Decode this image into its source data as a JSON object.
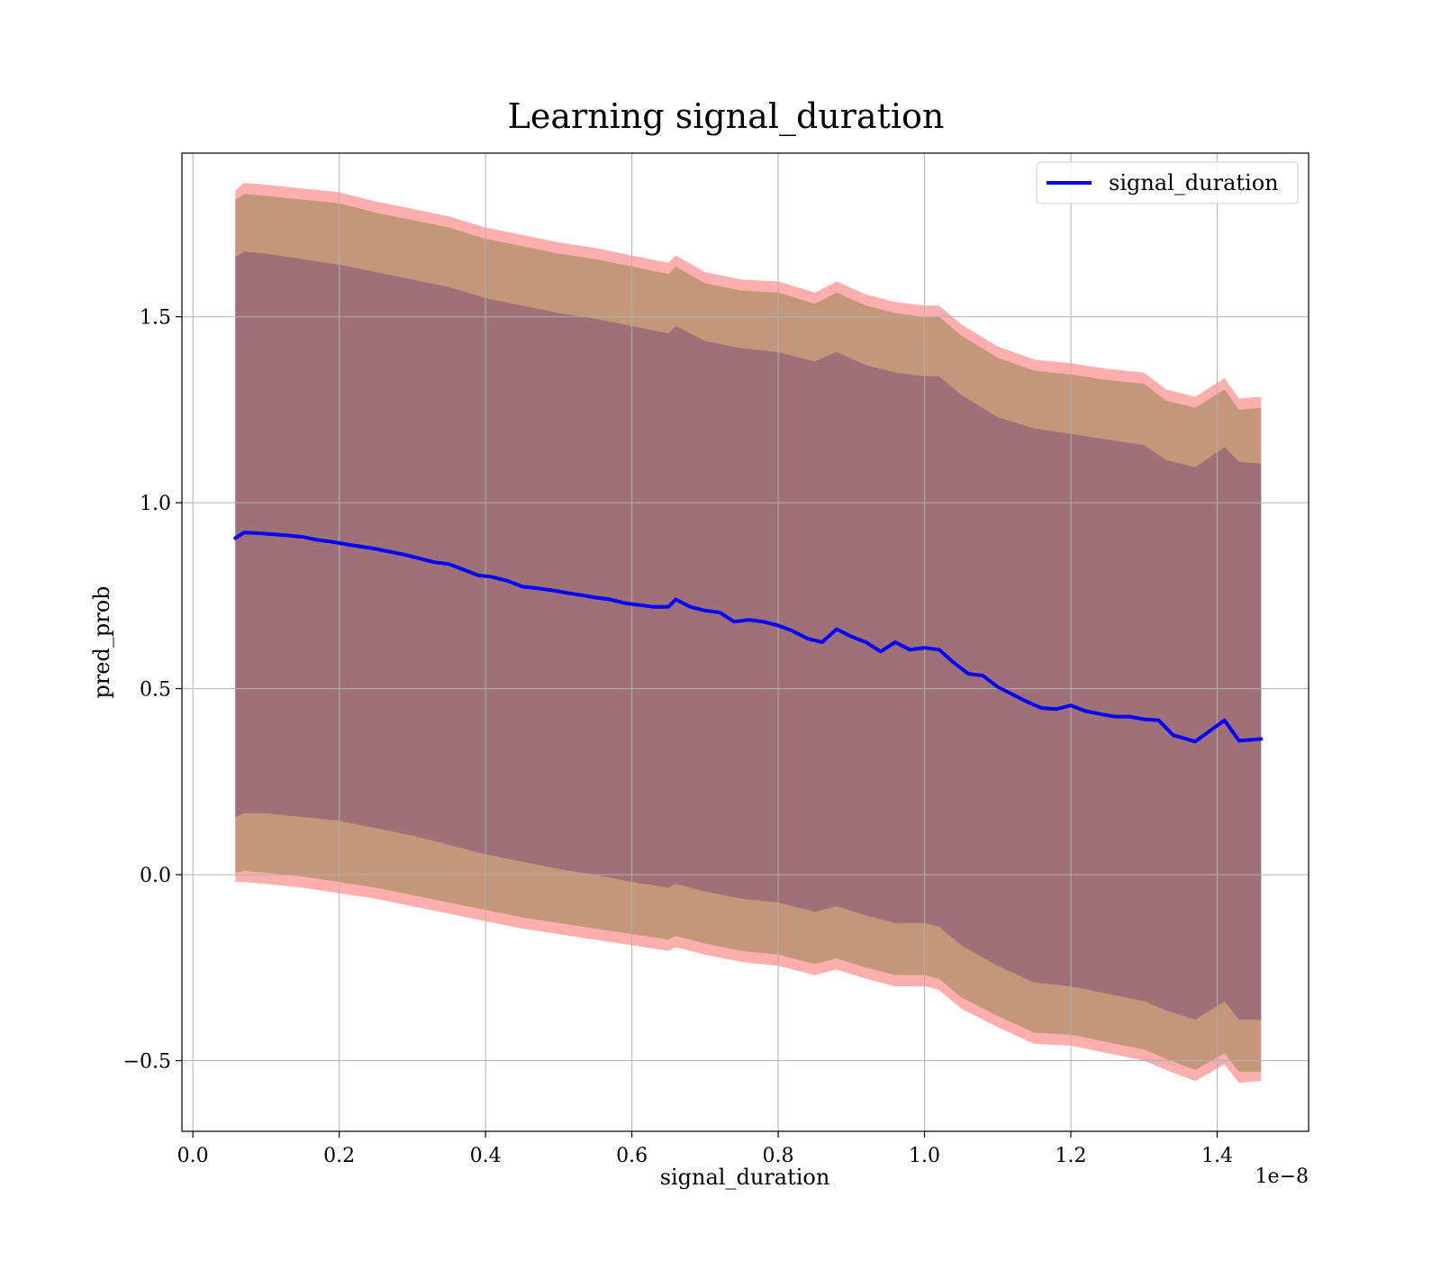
{
  "chart_data": {
    "type": "line",
    "title": "Learning signal_duration",
    "xlabel": "signal_duration",
    "ylabel": "pred_prob",
    "x_offset_text": "1e−8",
    "xlim": [
      -0.015,
      1.525
    ],
    "ylim": [
      -0.69,
      1.94
    ],
    "xticks": [
      0.0,
      0.2,
      0.4,
      0.6,
      0.8,
      1.0,
      1.2,
      1.4
    ],
    "xtick_labels": [
      "0.0",
      "0.2",
      "0.4",
      "0.6",
      "0.8",
      "1.0",
      "1.2",
      "1.4"
    ],
    "yticks": [
      -0.5,
      0.0,
      0.5,
      1.0,
      1.5
    ],
    "ytick_labels": [
      "−0.5",
      "0.0",
      "0.5",
      "1.0",
      "1.5"
    ],
    "grid": true,
    "legend": {
      "position": "top-right",
      "entries": [
        "signal_duration"
      ]
    },
    "colors": {
      "line": "#0000ff",
      "outer_band": "#ff6b6b",
      "middle_band": "#c4967a",
      "inner_band": "#a07078"
    },
    "series": [
      {
        "name": "signal_duration",
        "x": [
          0.058,
          0.07,
          0.09,
          0.11,
          0.13,
          0.15,
          0.17,
          0.19,
          0.21,
          0.23,
          0.25,
          0.27,
          0.29,
          0.31,
          0.33,
          0.35,
          0.37,
          0.39,
          0.41,
          0.43,
          0.45,
          0.47,
          0.49,
          0.51,
          0.53,
          0.55,
          0.57,
          0.59,
          0.61,
          0.63,
          0.65,
          0.66,
          0.68,
          0.7,
          0.72,
          0.74,
          0.76,
          0.78,
          0.8,
          0.82,
          0.84,
          0.86,
          0.88,
          0.9,
          0.92,
          0.94,
          0.96,
          0.98,
          1.0,
          1.02,
          1.04,
          1.06,
          1.08,
          1.1,
          1.12,
          1.14,
          1.16,
          1.18,
          1.2,
          1.22,
          1.24,
          1.26,
          1.28,
          1.3,
          1.32,
          1.34,
          1.37,
          1.41,
          1.43,
          1.46
        ],
        "values": [
          0.905,
          0.92,
          0.918,
          0.915,
          0.912,
          0.908,
          0.9,
          0.895,
          0.888,
          0.882,
          0.876,
          0.868,
          0.86,
          0.85,
          0.84,
          0.835,
          0.82,
          0.805,
          0.8,
          0.79,
          0.775,
          0.77,
          0.765,
          0.758,
          0.752,
          0.745,
          0.74,
          0.73,
          0.725,
          0.72,
          0.72,
          0.74,
          0.72,
          0.71,
          0.705,
          0.68,
          0.685,
          0.68,
          0.67,
          0.655,
          0.635,
          0.625,
          0.66,
          0.64,
          0.625,
          0.6,
          0.625,
          0.605,
          0.61,
          0.605,
          0.57,
          0.54,
          0.535,
          0.505,
          0.485,
          0.465,
          0.448,
          0.445,
          0.455,
          0.44,
          0.432,
          0.425,
          0.425,
          0.418,
          0.415,
          0.375,
          0.358,
          0.415,
          0.36,
          0.365
        ]
      }
    ],
    "bands": [
      {
        "x": [
          0.058,
          0.07,
          0.1,
          0.15,
          0.2,
          0.25,
          0.3,
          0.35,
          0.4,
          0.45,
          0.5,
          0.55,
          0.6,
          0.65,
          0.66,
          0.7,
          0.75,
          0.8,
          0.85,
          0.88,
          0.92,
          0.96,
          1.0,
          1.02,
          1.05,
          1.1,
          1.15,
          1.2,
          1.25,
          1.3,
          1.33,
          1.37,
          1.41,
          1.43,
          1.46
        ],
        "lower": [
          -0.02,
          -0.02,
          -0.025,
          -0.035,
          -0.05,
          -0.065,
          -0.085,
          -0.105,
          -0.125,
          -0.145,
          -0.16,
          -0.175,
          -0.19,
          -0.205,
          -0.195,
          -0.215,
          -0.235,
          -0.245,
          -0.27,
          -0.255,
          -0.28,
          -0.3,
          -0.3,
          -0.31,
          -0.36,
          -0.41,
          -0.455,
          -0.46,
          -0.48,
          -0.5,
          -0.525,
          -0.555,
          -0.51,
          -0.56,
          -0.555
        ],
        "upper": [
          1.84,
          1.86,
          1.855,
          1.845,
          1.835,
          1.81,
          1.79,
          1.77,
          1.74,
          1.72,
          1.7,
          1.685,
          1.665,
          1.645,
          1.665,
          1.62,
          1.6,
          1.595,
          1.565,
          1.595,
          1.56,
          1.54,
          1.53,
          1.53,
          1.48,
          1.42,
          1.385,
          1.375,
          1.36,
          1.35,
          1.305,
          1.285,
          1.335,
          1.28,
          1.285
        ]
      },
      {
        "x": [
          0.058,
          0.07,
          0.1,
          0.15,
          0.2,
          0.25,
          0.3,
          0.35,
          0.4,
          0.45,
          0.5,
          0.55,
          0.6,
          0.65,
          0.66,
          0.7,
          0.75,
          0.8,
          0.85,
          0.88,
          0.92,
          0.96,
          1.0,
          1.02,
          1.05,
          1.1,
          1.15,
          1.2,
          1.25,
          1.3,
          1.33,
          1.37,
          1.41,
          1.43,
          1.46
        ],
        "lower": [
          0.005,
          0.01,
          0.005,
          -0.005,
          -0.02,
          -0.035,
          -0.055,
          -0.075,
          -0.095,
          -0.115,
          -0.13,
          -0.145,
          -0.16,
          -0.175,
          -0.165,
          -0.185,
          -0.205,
          -0.215,
          -0.24,
          -0.225,
          -0.25,
          -0.27,
          -0.27,
          -0.28,
          -0.33,
          -0.38,
          -0.425,
          -0.43,
          -0.45,
          -0.47,
          -0.495,
          -0.525,
          -0.48,
          -0.53,
          -0.53
        ],
        "upper": [
          1.815,
          1.83,
          1.825,
          1.815,
          1.805,
          1.78,
          1.76,
          1.74,
          1.71,
          1.69,
          1.67,
          1.655,
          1.635,
          1.615,
          1.635,
          1.59,
          1.57,
          1.565,
          1.535,
          1.565,
          1.53,
          1.51,
          1.5,
          1.5,
          1.45,
          1.39,
          1.355,
          1.345,
          1.33,
          1.32,
          1.275,
          1.255,
          1.305,
          1.25,
          1.255
        ]
      },
      {
        "x": [
          0.058,
          0.07,
          0.1,
          0.15,
          0.2,
          0.25,
          0.3,
          0.35,
          0.4,
          0.45,
          0.5,
          0.55,
          0.6,
          0.65,
          0.66,
          0.7,
          0.75,
          0.8,
          0.85,
          0.88,
          0.92,
          0.96,
          1.0,
          1.02,
          1.05,
          1.1,
          1.15,
          1.2,
          1.25,
          1.3,
          1.33,
          1.37,
          1.41,
          1.43,
          1.46
        ],
        "lower": [
          0.155,
          0.165,
          0.165,
          0.155,
          0.145,
          0.125,
          0.105,
          0.08,
          0.055,
          0.035,
          0.015,
          0.0,
          -0.02,
          -0.035,
          -0.025,
          -0.045,
          -0.065,
          -0.075,
          -0.1,
          -0.085,
          -0.11,
          -0.13,
          -0.13,
          -0.14,
          -0.19,
          -0.245,
          -0.29,
          -0.3,
          -0.32,
          -0.34,
          -0.365,
          -0.39,
          -0.34,
          -0.39,
          -0.39
        ],
        "upper": [
          1.66,
          1.675,
          1.67,
          1.655,
          1.64,
          1.62,
          1.6,
          1.58,
          1.55,
          1.53,
          1.51,
          1.495,
          1.475,
          1.455,
          1.475,
          1.435,
          1.415,
          1.405,
          1.38,
          1.405,
          1.37,
          1.35,
          1.34,
          1.34,
          1.29,
          1.23,
          1.2,
          1.185,
          1.17,
          1.155,
          1.115,
          1.095,
          1.15,
          1.11,
          1.105
        ]
      }
    ]
  }
}
